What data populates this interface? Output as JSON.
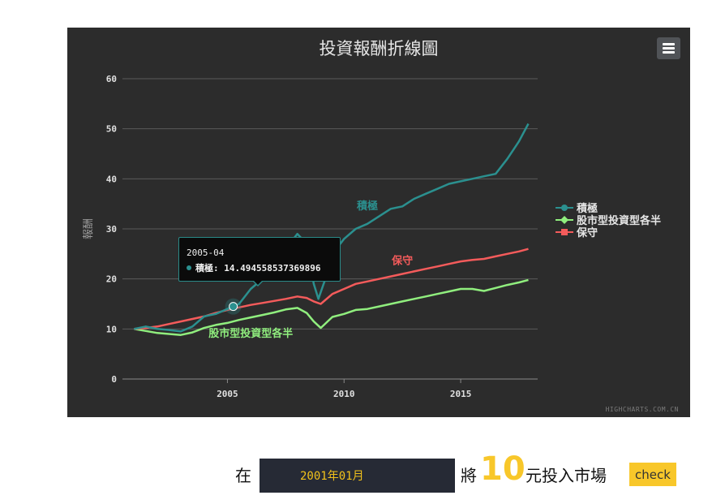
{
  "chart_data": {
    "type": "line",
    "title": "投資報酬折線圖",
    "ylabel": "報酬",
    "xlabel": "",
    "ylim": [
      0,
      60
    ],
    "xlim": [
      2000.5,
      2018.3
    ],
    "y_ticks": [
      "0",
      "10",
      "20",
      "30",
      "40",
      "50",
      "60"
    ],
    "x_ticks": [
      "2005",
      "2010",
      "2015"
    ],
    "grid": "horizontal",
    "legend_position": "right",
    "series": [
      {
        "name": "積極",
        "color": "#2b908f",
        "marker": "circle",
        "x": [
          2001.0,
          2001.5,
          2002.0,
          2002.5,
          2003.0,
          2003.5,
          2004.0,
          2004.5,
          2005.0,
          2005.25,
          2005.5,
          2006.0,
          2006.5,
          2007.0,
          2007.5,
          2008.0,
          2008.4,
          2008.7,
          2008.9,
          2009.2,
          2009.5,
          2010.0,
          2010.5,
          2011.0,
          2011.5,
          2012.0,
          2012.5,
          2013.0,
          2013.5,
          2014.0,
          2014.5,
          2015.0,
          2015.5,
          2016.0,
          2016.5,
          2017.0,
          2017.5,
          2017.9
        ],
        "values": [
          10,
          10.5,
          10,
          9.8,
          9.5,
          10.5,
          12.5,
          13,
          14,
          14.5,
          15,
          18,
          20,
          23,
          26,
          29,
          27,
          19,
          16,
          20,
          25,
          28,
          30,
          31,
          32.5,
          34,
          34.5,
          36,
          37,
          38,
          39,
          39.5,
          40,
          40.5,
          41,
          44,
          47.5,
          51
        ]
      },
      {
        "name": "股市型投資型各半",
        "color": "#90ee7e",
        "marker": "diamond",
        "x": [
          2001.0,
          2001.5,
          2002.0,
          2002.5,
          2003.0,
          2003.5,
          2004.0,
          2004.5,
          2005.0,
          2005.5,
          2006.0,
          2006.5,
          2007.0,
          2007.5,
          2008.0,
          2008.4,
          2008.7,
          2009.0,
          2009.5,
          2010.0,
          2010.5,
          2011.0,
          2011.5,
          2012.0,
          2012.5,
          2013.0,
          2013.5,
          2014.0,
          2014.5,
          2015.0,
          2015.5,
          2016.0,
          2016.5,
          2017.0,
          2017.5,
          2017.9
        ],
        "values": [
          10,
          9.6,
          9.2,
          9.0,
          8.8,
          9.3,
          10.2,
          10.8,
          11.2,
          11.8,
          12.3,
          12.8,
          13.3,
          13.9,
          14.2,
          13.2,
          11.5,
          10.2,
          12.4,
          13.0,
          13.8,
          14.0,
          14.5,
          15.0,
          15.5,
          16.0,
          16.5,
          17.0,
          17.5,
          18.0,
          18.0,
          17.6,
          18.2,
          18.8,
          19.3,
          19.8
        ]
      },
      {
        "name": "保守",
        "color": "#f45b5b",
        "marker": "square",
        "x": [
          2001.0,
          2001.5,
          2002.0,
          2002.5,
          2003.0,
          2003.5,
          2004.0,
          2004.5,
          2005.0,
          2005.5,
          2006.0,
          2006.5,
          2007.0,
          2007.5,
          2008.0,
          2008.4,
          2008.7,
          2009.0,
          2009.5,
          2010.0,
          2010.5,
          2011.0,
          2011.5,
          2012.0,
          2012.5,
          2013.0,
          2013.5,
          2014.0,
          2014.5,
          2015.0,
          2015.5,
          2016.0,
          2016.5,
          2017.0,
          2017.5,
          2017.9
        ],
        "values": [
          10,
          10.2,
          10.5,
          11,
          11.5,
          12,
          12.5,
          13.2,
          13.8,
          14.3,
          14.8,
          15.2,
          15.6,
          16,
          16.5,
          16.2,
          15.5,
          15,
          17,
          18,
          19,
          19.5,
          20,
          20.5,
          21,
          21.5,
          22,
          22.5,
          23,
          23.5,
          23.8,
          24,
          24.5,
          25,
          25.5,
          26
        ]
      }
    ],
    "annotations": [
      {
        "text": "積極",
        "series": 0
      },
      {
        "text": "保守",
        "series": 2
      },
      {
        "text": "股市型投資型各半",
        "series": 1
      }
    ],
    "tooltip": {
      "date": "2005-04",
      "series": "積極",
      "label": "積極: 14.494558537369896",
      "x": 2005.25,
      "value": 14.494558537369896
    },
    "credits": "HIGHCHARTS.COM.CN"
  },
  "controls": {
    "prefix_label": "在",
    "date_value": "2001年01月",
    "mid_label": "將",
    "amount": "10",
    "suffix_label": "元投入市場",
    "check_label": "check"
  },
  "colors": {
    "panel_bg": "#2c2c2c",
    "accent_yellow": "#f8c72a",
    "input_bg": "#262a35"
  }
}
